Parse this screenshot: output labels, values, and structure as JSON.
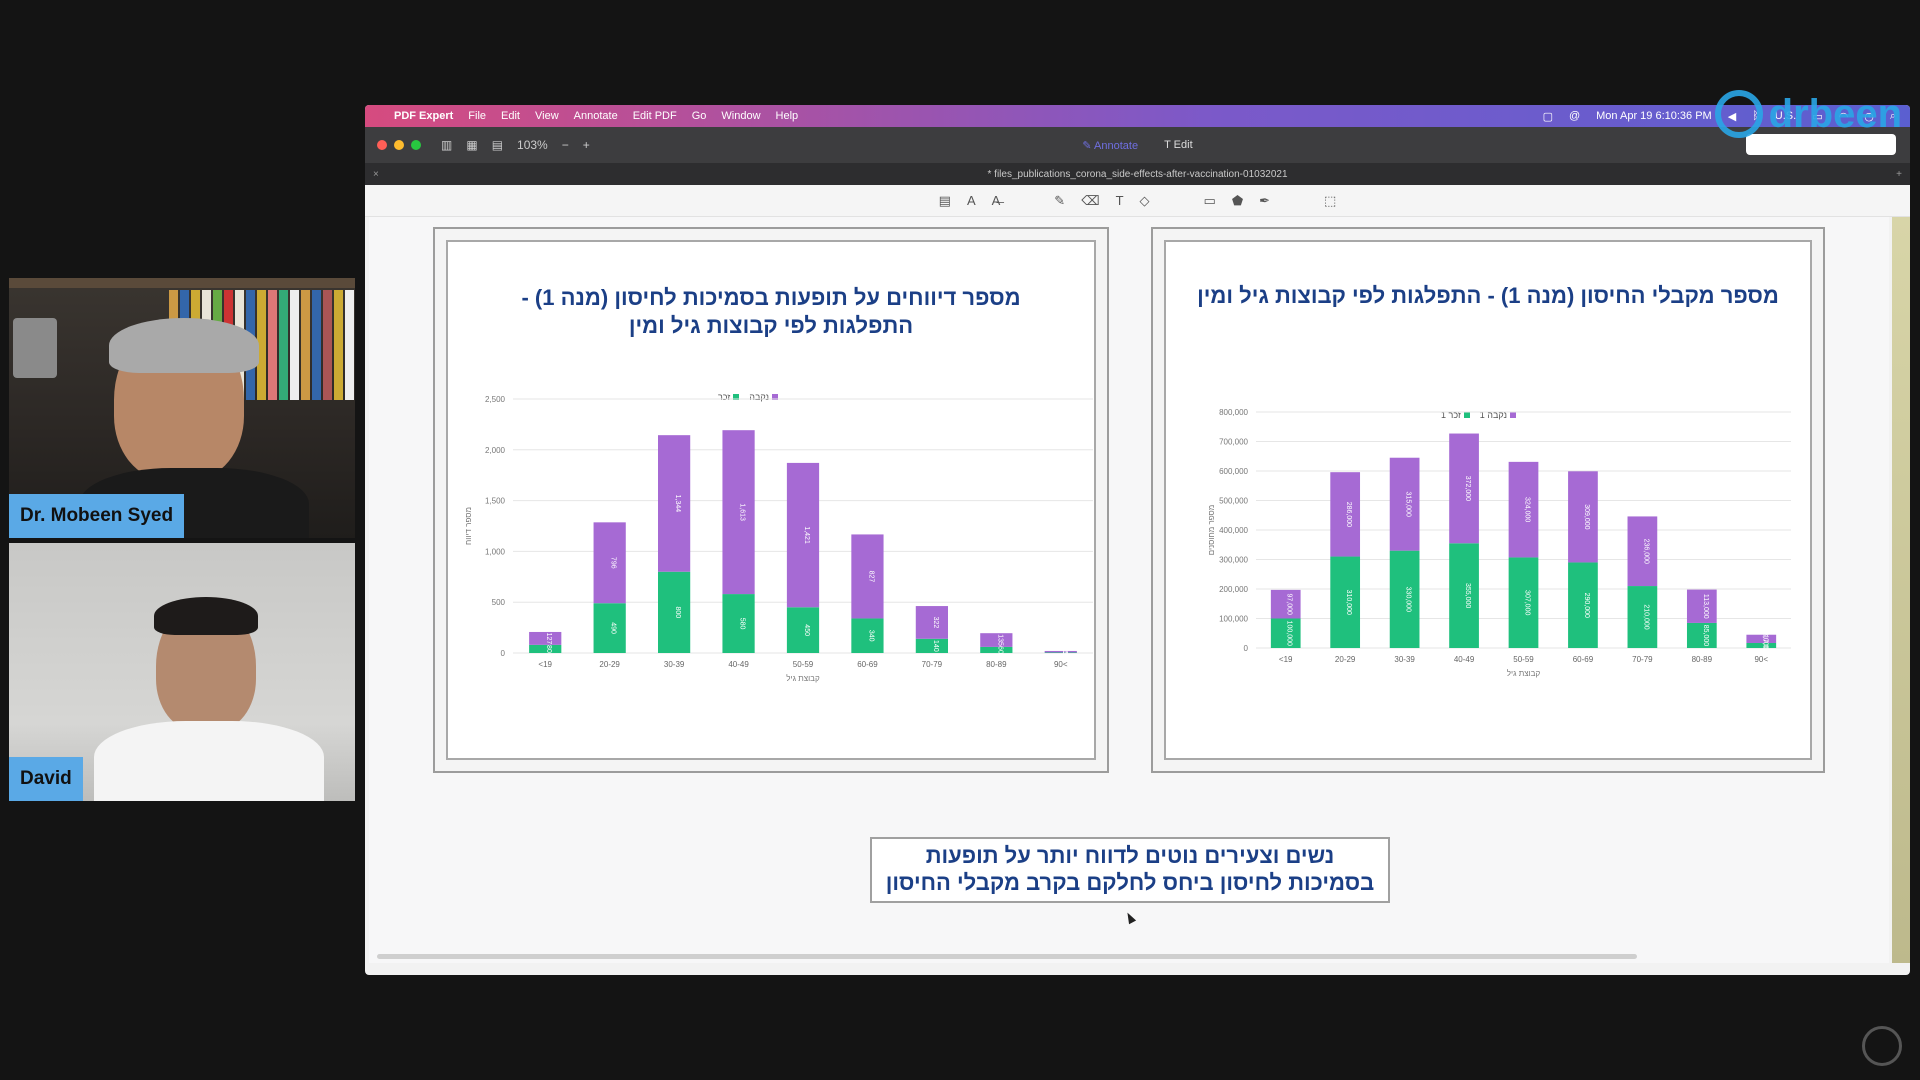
{
  "participants": [
    {
      "name": "Dr. Mobeen Syed"
    },
    {
      "name": "David"
    }
  ],
  "menubar": {
    "app": "PDF Expert",
    "items": [
      "File",
      "Edit",
      "View",
      "Annotate",
      "Edit PDF",
      "Go",
      "Window",
      "Help"
    ],
    "clock": "Mon Apr 19  6:10:36 PM",
    "locale": "U.S."
  },
  "toolbar": {
    "zoom": "103%",
    "annotate_label": "Annotate",
    "edit_label": "Edit"
  },
  "tab": {
    "title": "* files_publications_corona_side-effects-after-vaccination-01032021"
  },
  "logo_text": "drbeen",
  "slides": [
    {
      "title_line1": "מספר דיווחים על תופעות בסמיכות לחיסון (מנה 1) -",
      "title_line2": "התפלגות לפי קבוצות גיל ומין",
      "legend": [
        "זכר",
        "נקבה"
      ],
      "ylabel": "מספר דיווח",
      "xlabel": "קבוצת גיל"
    },
    {
      "title_line1": "מספר מקבלי החיסון (מנה 1) - התפלגות לפי קבוצות גיל ומין",
      "title_line2": "",
      "legend": [
        "זכר 1",
        "נקבה 1"
      ],
      "ylabel": "מספר מחוסנים",
      "xlabel": "קבוצת גיל"
    }
  ],
  "caption": {
    "line1": "נשים וצעירים נוטים לדווח יותר על תופעות",
    "line2": "בסמיכות לחיסון ביחס לחלקם בקרב מקבלי החיסון"
  },
  "colors": {
    "male": "#1fc07d",
    "female": "#a66ad4",
    "title": "#1b3f86"
  },
  "chart_data": [
    {
      "type": "bar",
      "stacked": true,
      "categories": [
        "<19",
        "20-29",
        "30-39",
        "40-49",
        "50-59",
        "60-69",
        "70-79",
        "80-89",
        "90<"
      ],
      "series": [
        {
          "name": "זכר",
          "values": [
            80,
            490,
            800,
            580,
            450,
            340,
            140,
            60,
            5
          ]
        },
        {
          "name": "נקבה",
          "values": [
            127,
            796,
            1344,
            1613,
            1421,
            827,
            322,
            135,
            15
          ]
        }
      ],
      "ylim": [
        0,
        2500
      ],
      "yticks": [
        "0",
        "500",
        "1,000",
        "1,500",
        "2,000",
        "2,500"
      ]
    },
    {
      "type": "bar",
      "stacked": true,
      "categories": [
        "<19",
        "20-29",
        "30-39",
        "40-49",
        "50-59",
        "60-69",
        "70-79",
        "80-89",
        "90<"
      ],
      "series": [
        {
          "name": "זכר 1",
          "values": [
            100000,
            310000,
            330000,
            355000,
            307000,
            290000,
            210000,
            85000,
            17000
          ]
        },
        {
          "name": "נקבה 1",
          "values": [
            97000,
            286000,
            315000,
            372000,
            324000,
            309000,
            236000,
            113000,
            28000
          ]
        }
      ],
      "ylim": [
        0,
        800000
      ],
      "yticks": [
        "0",
        "100,000",
        "200,000",
        "300,000",
        "400,000",
        "500,000",
        "600,000",
        "700,000",
        "800,000"
      ]
    }
  ]
}
